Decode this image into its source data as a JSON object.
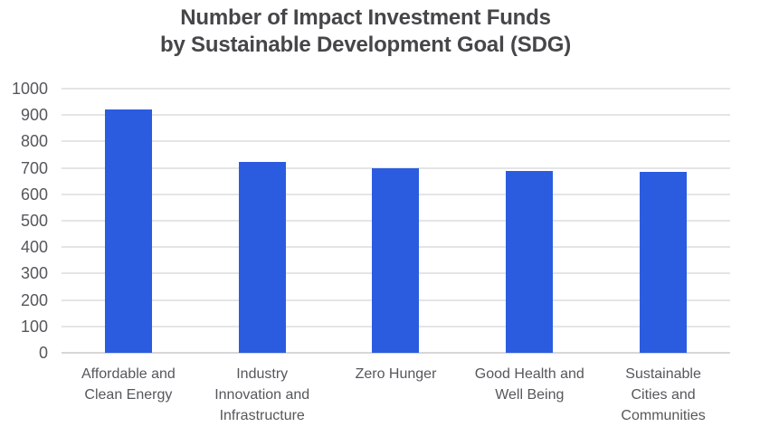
{
  "title": {
    "line1": "Number of Impact Investment Funds",
    "line2": "by Sustainable Development Goal (SDG)"
  },
  "colors": {
    "background": "#ffffff",
    "bar": "#2b5ce0",
    "title_text": "#46464a",
    "axis_text": "#55575b",
    "gridline": "#e5e5e7",
    "axis_line": "#d7d7d9"
  },
  "chart_data": {
    "type": "bar",
    "title": "Number of Impact Investment Funds by Sustainable Development Goal (SDG)",
    "categories": [
      "Affordable and Clean Energy",
      "Industry Innovation and Infrastructure",
      "Zero Hunger",
      "Good Health and Well Being",
      "Sustainable Cities and Communities"
    ],
    "category_lines": [
      [
        "Affordable and",
        "Clean Energy"
      ],
      [
        "Industry",
        "Innovation and",
        "Infrastructure"
      ],
      [
        "Zero Hunger"
      ],
      [
        "Good Health and",
        "Well Being"
      ],
      [
        "Sustainable",
        "Cities and",
        "Communities"
      ]
    ],
    "values": [
      920,
      723,
      700,
      687,
      684
    ],
    "xlabel": "",
    "ylabel": "",
    "ylim": [
      0,
      1000
    ],
    "y_ticks": [
      0,
      100,
      200,
      300,
      400,
      500,
      600,
      700,
      800,
      900,
      1000
    ],
    "grid": "horizontal-gridlines-on",
    "legend": "none",
    "series_color": "#2b5ce0"
  }
}
